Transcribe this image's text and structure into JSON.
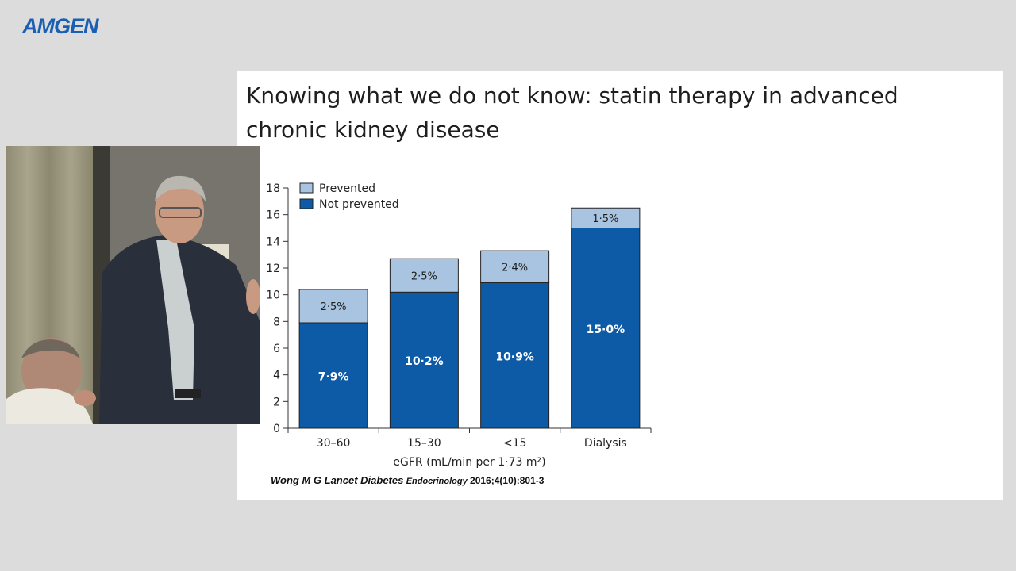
{
  "brand": {
    "logo_text": "AMGEN",
    "color": "#1a5fb4"
  },
  "slide": {
    "title_line1": "Knowing what we do not know: statin therapy in advanced",
    "title_line2": "chronic kidney disease",
    "citation": {
      "journal": "Wong M G Lancet Diabetes",
      "abbr": "Endocrinology",
      "ref": "2016;4(10):801-3"
    }
  },
  "chart_data": {
    "type": "bar",
    "stacked": true,
    "categories": [
      "30–60",
      "15–30",
      "<15",
      "Dialysis"
    ],
    "series": [
      {
        "name": "Not prevented",
        "values": [
          7.9,
          10.2,
          10.9,
          15.0
        ],
        "labels": [
          "7·9%",
          "10·2%",
          "10·9%",
          "15·0%"
        ],
        "color": "#0d5aa7",
        "label_color": "#ffffff"
      },
      {
        "name": "Prevented",
        "values": [
          2.5,
          2.5,
          2.4,
          1.5
        ],
        "labels": [
          "2·5%",
          "2·5%",
          "2·4%",
          "1·5%"
        ],
        "color": "#a9c4e0",
        "label_color": "#1e1e1e"
      }
    ],
    "legend": {
      "placement": "top-left",
      "order": [
        "Prevented",
        "Not prevented"
      ]
    },
    "xlabel": "eGFR (mL/min per 1·73 m²)",
    "ylabel": "",
    "ylim": [
      0,
      18
    ],
    "yticks": [
      0,
      2,
      4,
      6,
      8,
      10,
      12,
      14,
      16,
      18
    ],
    "grid": false
  },
  "video_inset": {
    "icon": "presenter-video-icon"
  }
}
